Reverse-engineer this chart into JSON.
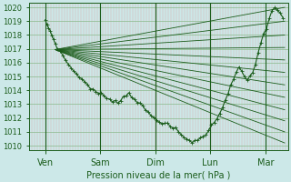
{
  "bg_color": "#cce8e8",
  "grid_color_v": "#d8b0b0",
  "grid_color_h": "#8aba8a",
  "line_color": "#1a5c1a",
  "ylim": [
    1010,
    1020
  ],
  "yticks": [
    1010,
    1011,
    1012,
    1013,
    1014,
    1015,
    1016,
    1017,
    1018,
    1019,
    1020
  ],
  "day_labels": [
    "Ven",
    "Sam",
    "Dim",
    "Lun",
    "Mar"
  ],
  "day_positions": [
    0.0,
    1.0,
    2.0,
    3.0,
    4.0
  ],
  "xlabel": "Pression niveau de la mer( hPa )",
  "fan_origin_x": 0.18,
  "fan_origin_y": 1016.95,
  "fan_endpoints_x": 4.35,
  "fan_endpoints_y": [
    1010.2,
    1011.0,
    1011.8,
    1012.6,
    1013.5,
    1014.4,
    1015.3,
    1016.2,
    1017.1,
    1018.0,
    1019.0,
    1020.0
  ],
  "main_line_x": [
    0.0,
    0.03,
    0.06,
    0.09,
    0.12,
    0.15,
    0.18,
    0.22,
    0.27,
    0.32,
    0.37,
    0.42,
    0.47,
    0.52,
    0.57,
    0.62,
    0.67,
    0.72,
    0.77,
    0.82,
    0.87,
    0.92,
    0.97,
    1.02,
    1.07,
    1.12,
    1.17,
    1.22,
    1.27,
    1.32,
    1.37,
    1.42,
    1.47,
    1.52,
    1.57,
    1.62,
    1.67,
    1.72,
    1.77,
    1.82,
    1.87,
    1.92,
    1.97,
    2.02,
    2.07,
    2.12,
    2.17,
    2.22,
    2.27,
    2.32,
    2.37,
    2.42,
    2.47,
    2.52,
    2.57,
    2.62,
    2.67,
    2.72,
    2.77,
    2.82,
    2.87,
    2.92,
    2.97,
    3.02,
    3.07,
    3.12,
    3.17,
    3.22,
    3.27,
    3.32,
    3.37,
    3.42,
    3.47,
    3.52,
    3.57,
    3.62,
    3.67,
    3.72,
    3.77,
    3.82,
    3.87,
    3.92,
    3.97,
    4.02,
    4.07,
    4.12,
    4.17,
    4.22,
    4.27,
    4.32
  ],
  "main_line_y": [
    1019.0,
    1018.8,
    1018.5,
    1018.3,
    1018.0,
    1017.7,
    1017.4,
    1017.1,
    1016.8,
    1016.5,
    1016.2,
    1015.9,
    1015.6,
    1015.4,
    1015.2,
    1015.0,
    1014.8,
    1014.6,
    1014.4,
    1014.2,
    1014.0,
    1013.9,
    1013.8,
    1013.7,
    1013.6,
    1013.5,
    1013.4,
    1013.3,
    1013.2,
    1013.1,
    1013.3,
    1013.5,
    1013.7,
    1013.8,
    1013.6,
    1013.4,
    1013.2,
    1013.0,
    1012.8,
    1012.6,
    1012.4,
    1012.2,
    1012.0,
    1011.9,
    1011.8,
    1011.7,
    1011.6,
    1011.5,
    1011.4,
    1011.3,
    1011.2,
    1011.0,
    1010.8,
    1010.6,
    1010.5,
    1010.4,
    1010.3,
    1010.35,
    1010.4,
    1010.5,
    1010.7,
    1010.9,
    1011.1,
    1011.4,
    1011.7,
    1012.0,
    1012.4,
    1012.8,
    1013.3,
    1013.8,
    1014.3,
    1014.8,
    1015.3,
    1015.6,
    1015.3,
    1015.0,
    1014.7,
    1015.0,
    1015.3,
    1016.0,
    1016.7,
    1017.4,
    1018.1,
    1018.5,
    1019.2,
    1019.8,
    1020.0,
    1019.7,
    1019.5,
    1019.2
  ],
  "xlim_left": -0.3,
  "xlim_right": 4.42
}
